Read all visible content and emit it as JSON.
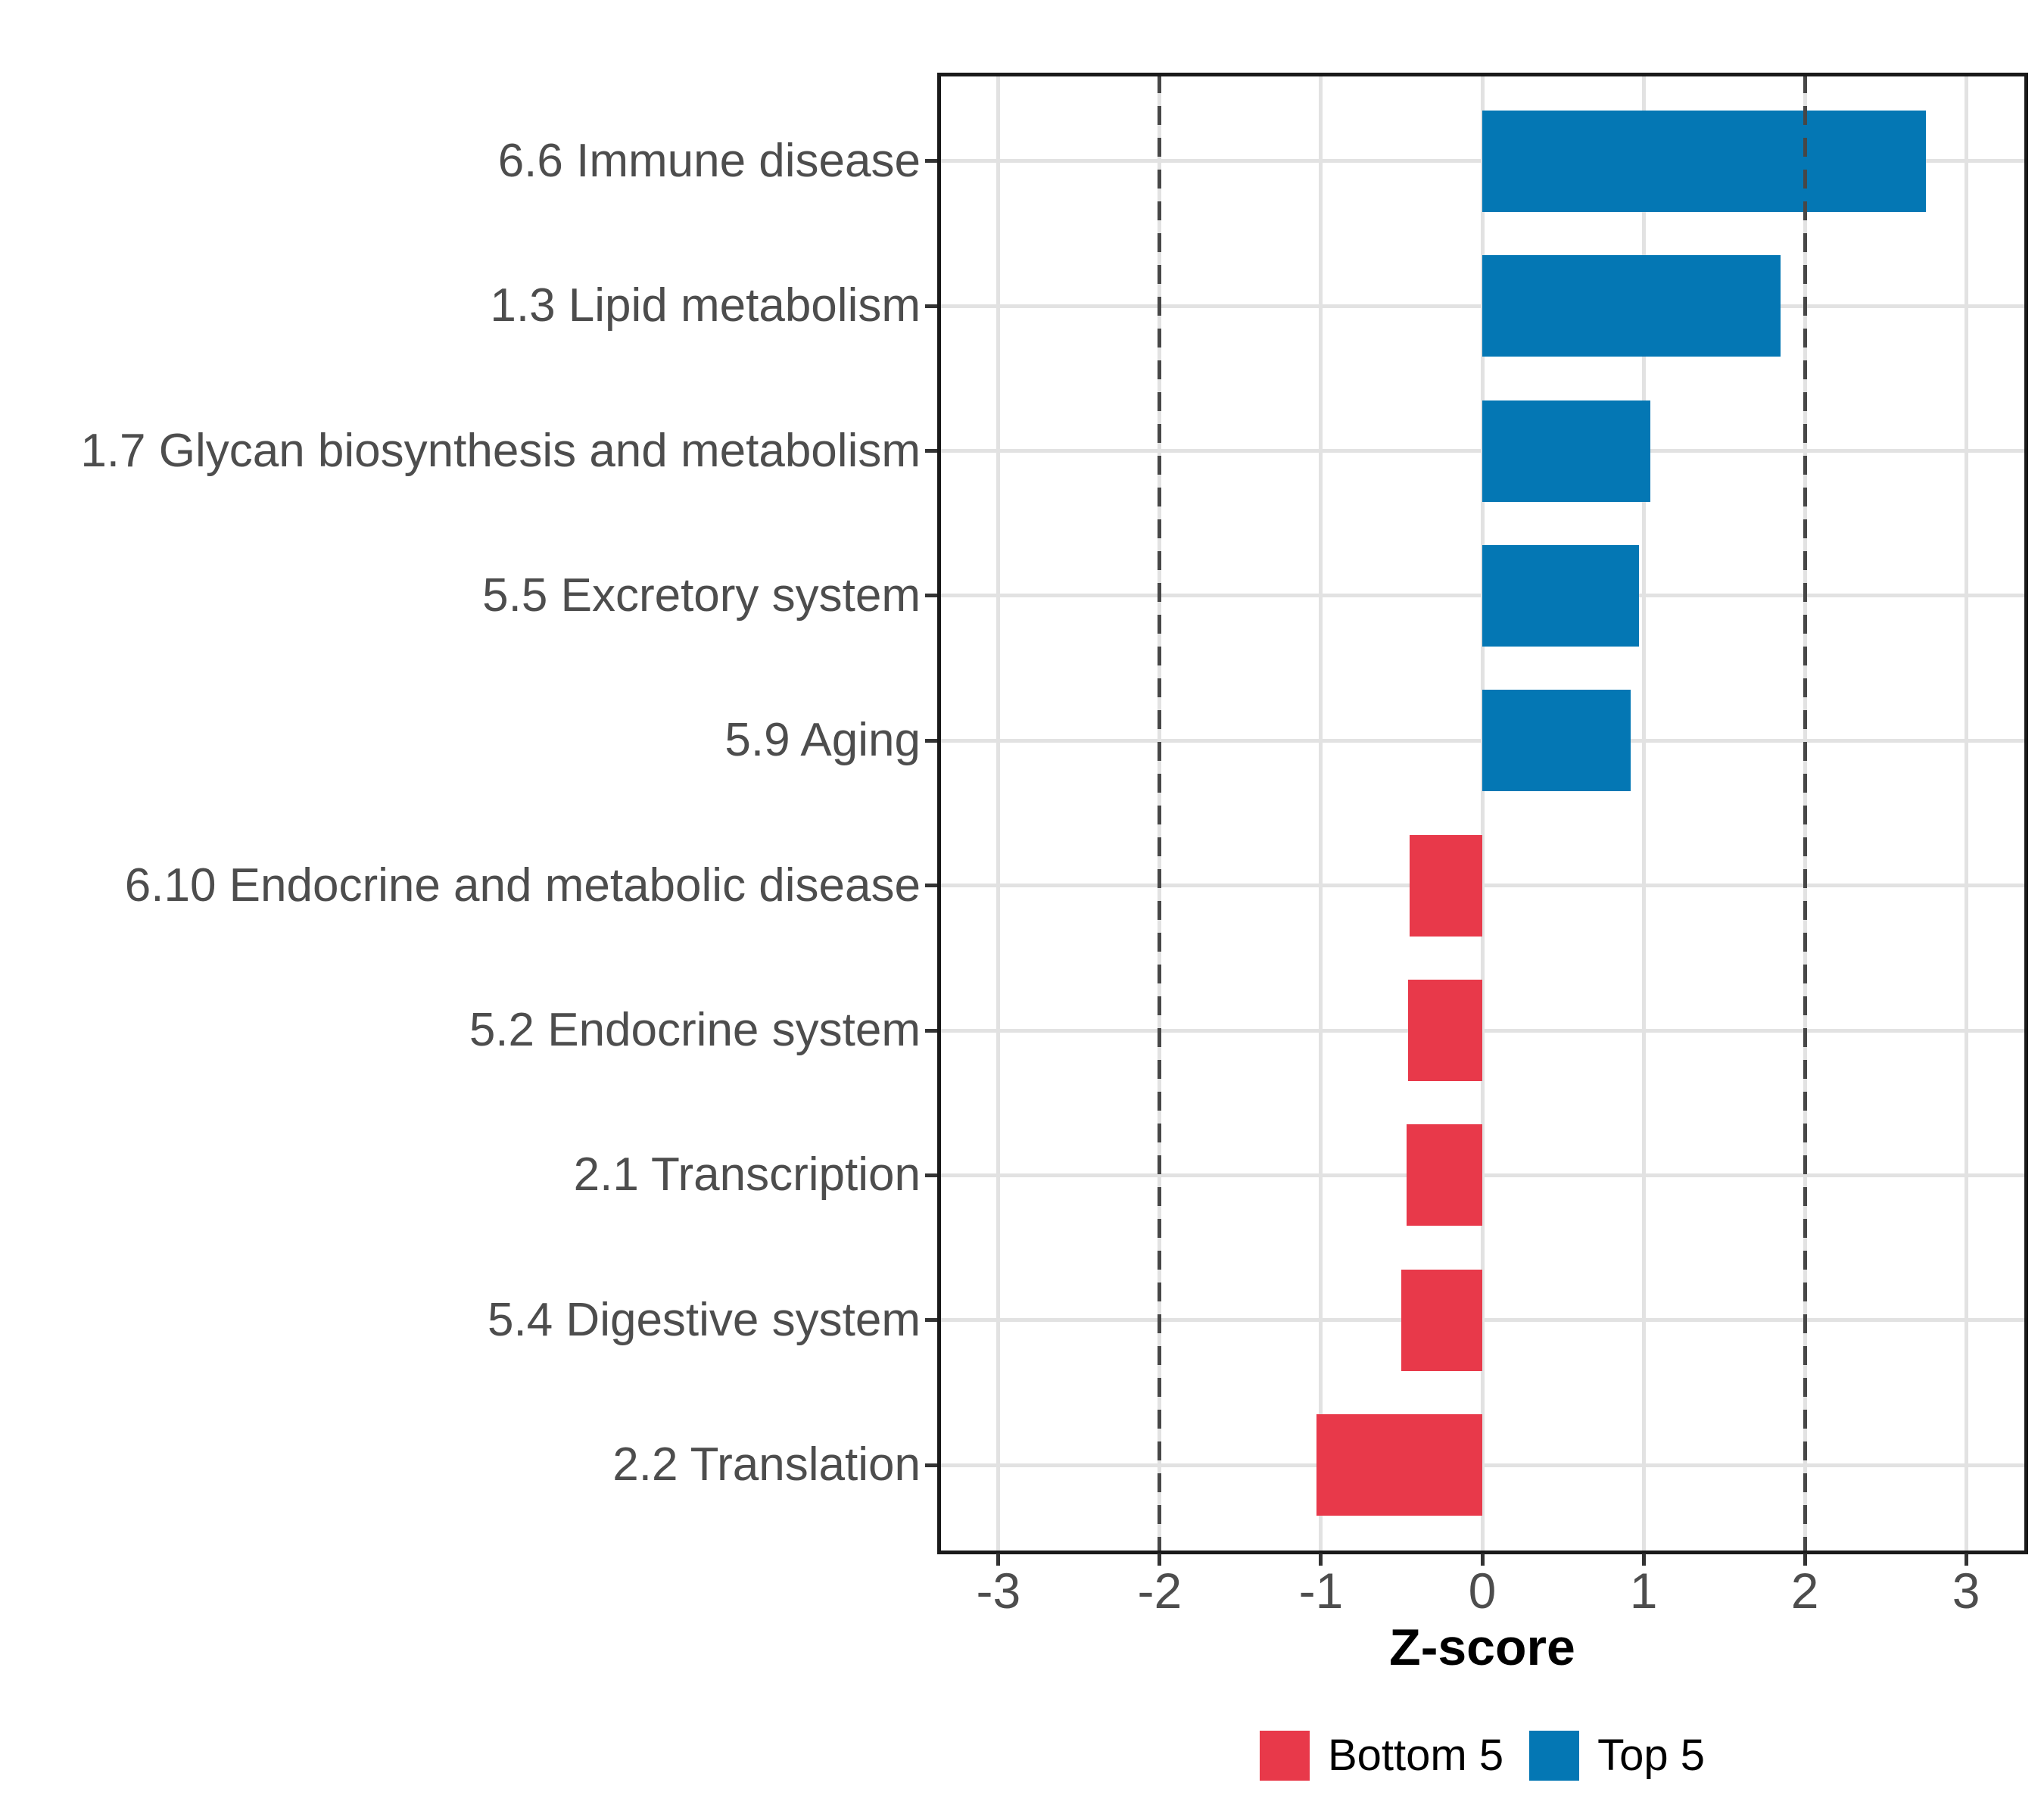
{
  "chart_data": {
    "type": "bar",
    "orientation": "horizontal",
    "xlabel": "Z-score",
    "categories": [
      "6.6 Immune disease",
      "1.3 Lipid metabolism",
      "1.7 Glycan biosynthesis and metabolism",
      "5.5 Excretory system",
      "5.9 Aging",
      "6.10 Endocrine and metabolic disease",
      "5.2 Endocrine system",
      "2.1 Transcription",
      "5.4 Digestive system",
      "2.2 Translation"
    ],
    "values": [
      2.75,
      1.85,
      1.04,
      0.97,
      0.92,
      -0.45,
      -0.46,
      -0.47,
      -0.5,
      -1.03
    ],
    "bar_groups": [
      "Top 5",
      "Top 5",
      "Top 5",
      "Top 5",
      "Top 5",
      "Bottom 5",
      "Bottom 5",
      "Bottom 5",
      "Bottom 5",
      "Bottom 5"
    ],
    "x_ticks": [
      -3,
      -2,
      -1,
      0,
      1,
      2,
      3
    ],
    "x_tick_labels": [
      "-3",
      "-2",
      "-1",
      "0",
      "1",
      "2",
      "3"
    ],
    "xlim": [
      -3.37,
      3.37
    ],
    "reference_lines": [
      -2,
      2
    ],
    "reference_line_style": "dashed",
    "grid": "major",
    "legend_position": "bottom",
    "legend": [
      {
        "label": "Bottom 5",
        "color": "#e8394a"
      },
      {
        "label": "Top 5",
        "color": "#0477b4"
      }
    ]
  },
  "colors": {
    "top5": "#0477b4",
    "bottom5": "#e8394a",
    "gridline": "#e2e2e2",
    "reference_line": "#474747",
    "panel_border": "#1a1a1a",
    "axis_text": "#4d4d4d",
    "title_text": "#000000",
    "background": "#ffffff"
  }
}
